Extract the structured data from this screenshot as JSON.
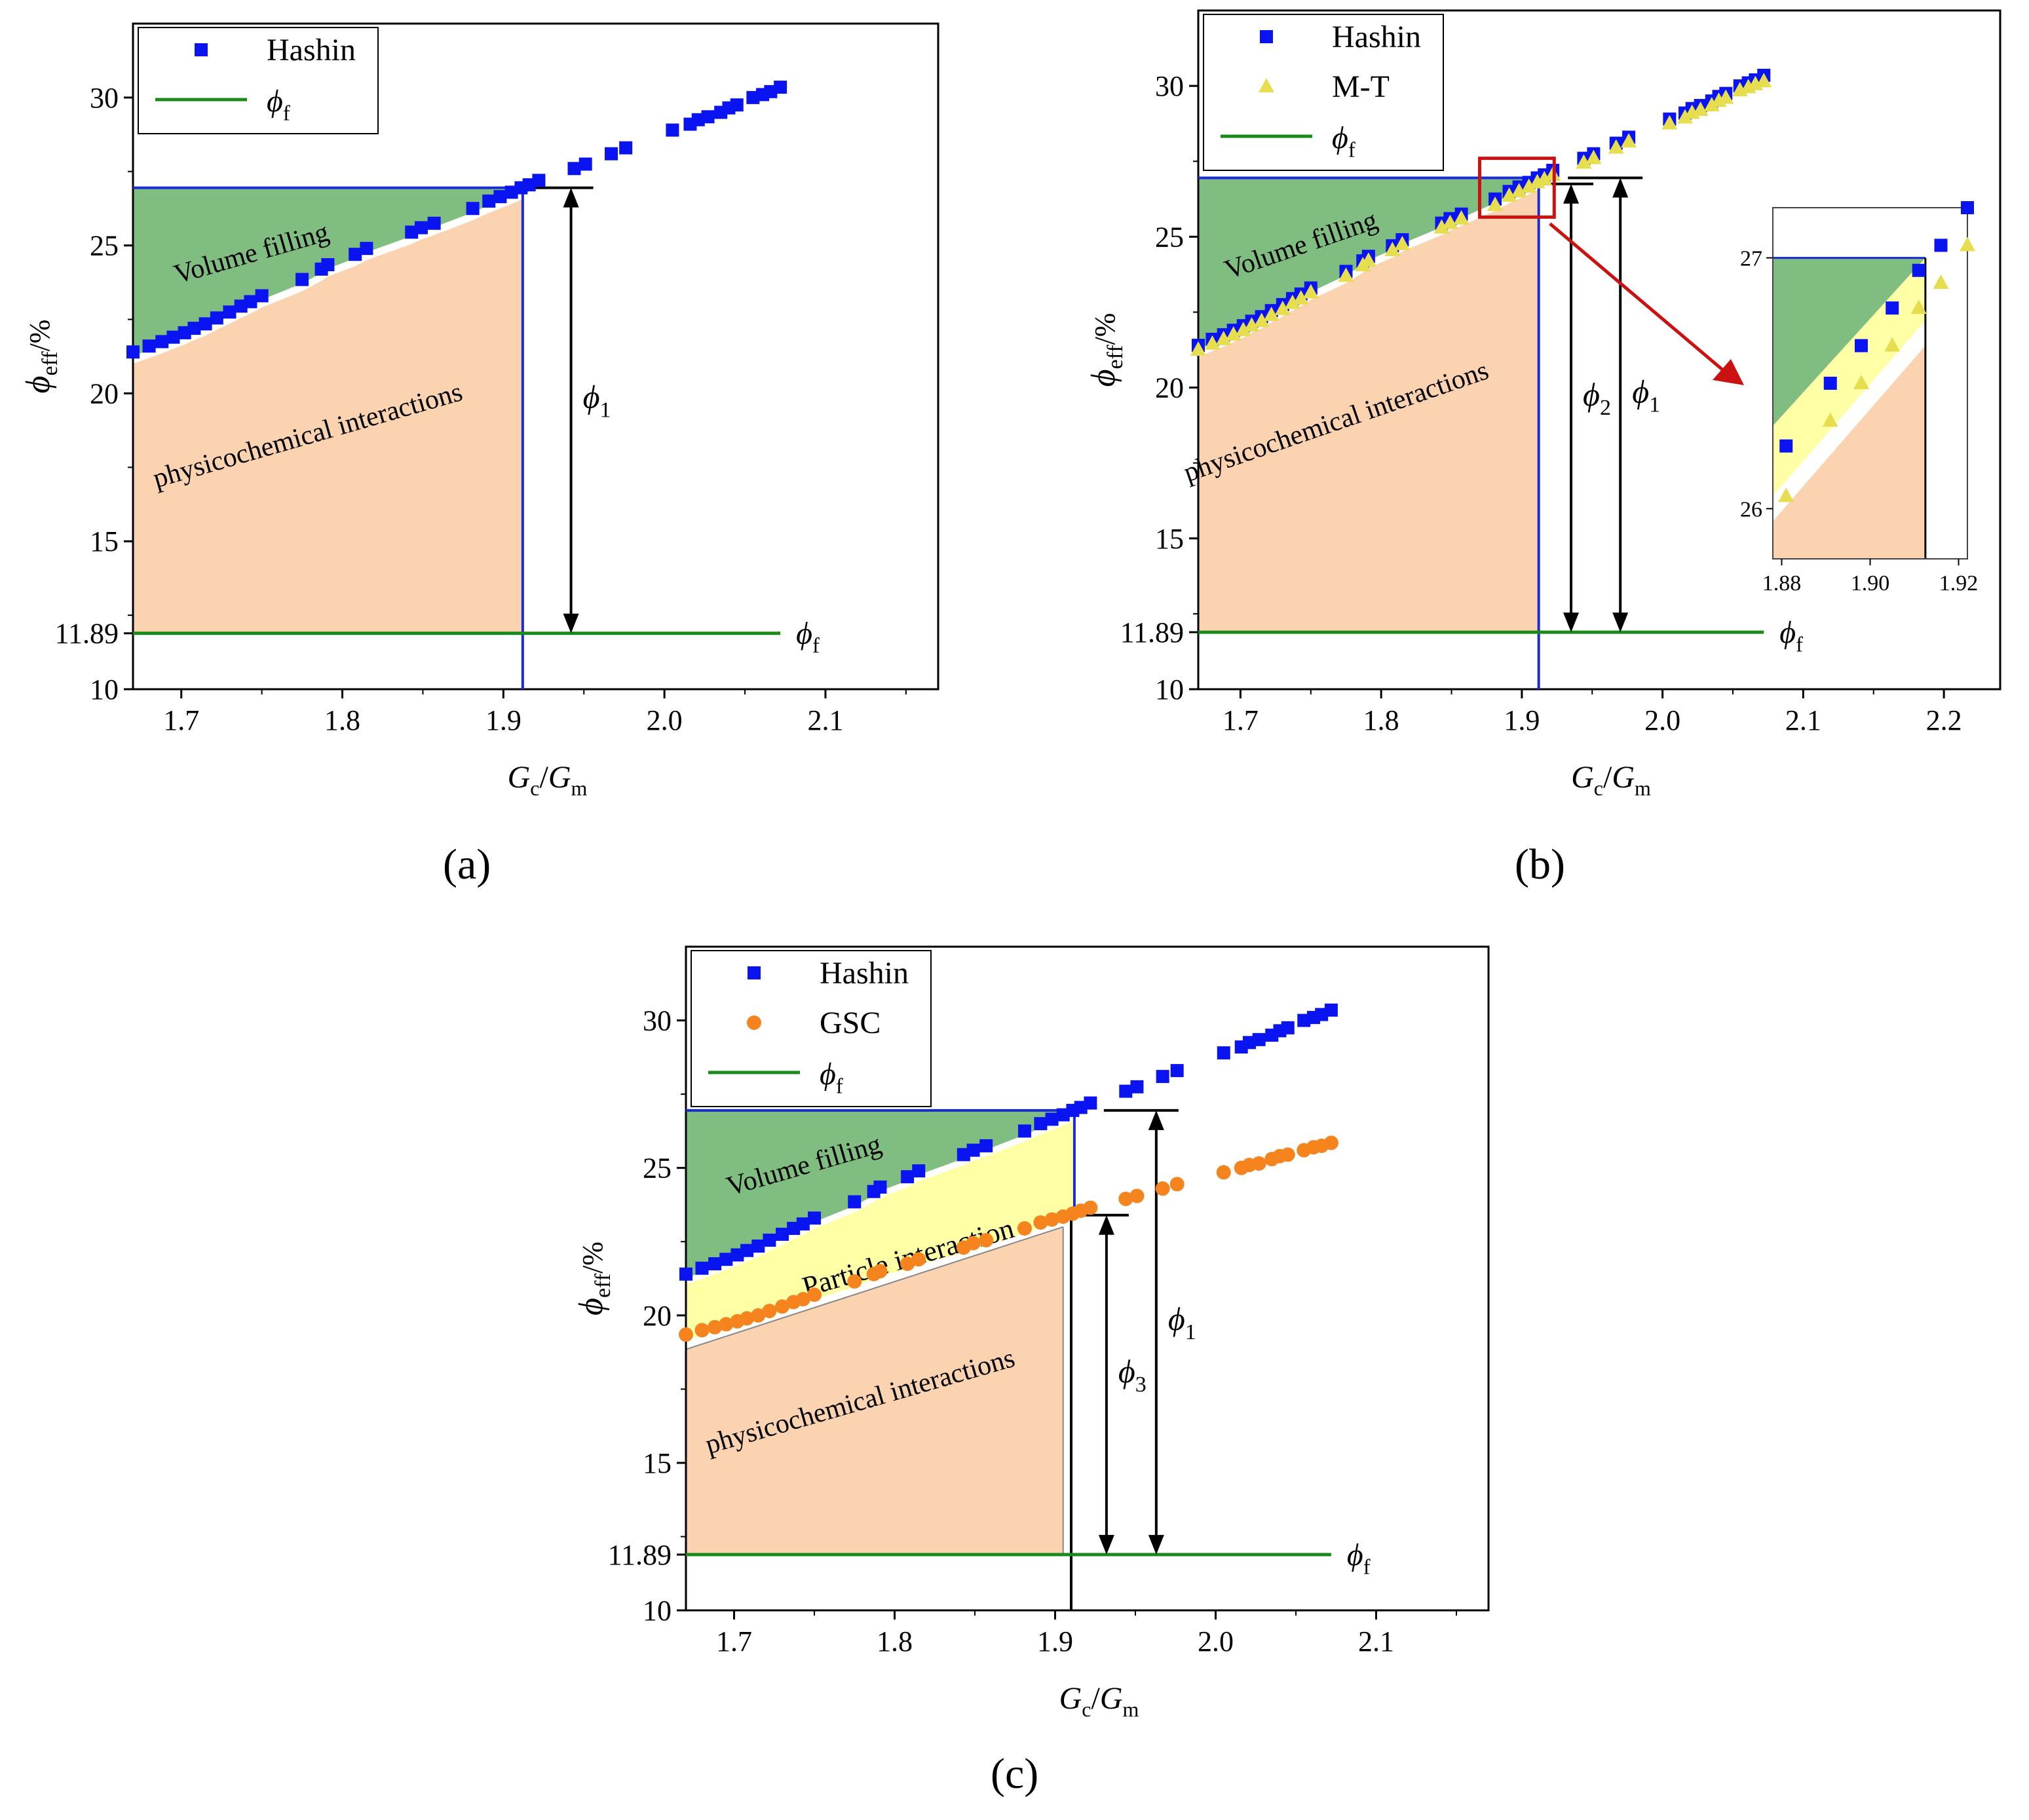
{
  "figure": {
    "panel_labels": [
      "(a)",
      "(b)",
      "(c)"
    ]
  },
  "colors": {
    "hashin": "#0a14f0",
    "mt": "#e6dd4f",
    "gsc": "#f5841f",
    "phi_f_line": "#1a8a1a",
    "volume_filling": "#7fbd80",
    "particle_interaction": "#ffffa6",
    "physicochemical": "#fbd3b0",
    "blue_line": "#1a2ad6",
    "zoom_box": "#cc1111"
  },
  "chart_data": [
    {
      "type": "scatter",
      "panel": "(a)",
      "xlabel_main": "G",
      "xlabel_sub_c": "c",
      "xlabel_sub_m": "m",
      "ylabel_main": "ϕ",
      "ylabel_sub": "eff",
      "ylabel_unit": "/%",
      "xlim": [
        1.67,
        2.17
      ],
      "ylim": [
        10,
        32.5
      ],
      "xticks": [
        "1.7",
        "1.8",
        "1.9",
        "2.0",
        "2.1"
      ],
      "yticks": [
        "10",
        "11.89",
        "15",
        "20",
        "25",
        "30"
      ],
      "ytick_values": [
        10,
        11.89,
        15,
        20,
        25,
        30
      ],
      "xtick_values": [
        1.7,
        1.8,
        1.9,
        2.0,
        2.1
      ],
      "phi_f_value": 11.89,
      "phi_f_label": "ϕ",
      "phi_f_sub": "f",
      "regions": [
        {
          "name": "Volume filling",
          "label": "Volume filling"
        },
        {
          "name": "physicochemical interactions",
          "label": "physicochemical interactions"
        }
      ],
      "arrows": [
        {
          "label": "ϕ",
          "sub": "1",
          "x": 1.942,
          "from": 11.89,
          "to": 26.95
        }
      ],
      "legend": {
        "entries": [
          "Hashin",
          "ϕ"
        ],
        "phi_sub": "f",
        "placement": "top-left"
      },
      "series": [
        {
          "name": "Hashin",
          "marker": "square",
          "x": [
            1.67,
            1.68,
            1.688,
            1.695,
            1.702,
            1.708,
            1.715,
            1.722,
            1.73,
            1.737,
            1.743,
            1.75,
            1.775,
            1.787,
            1.791,
            1.808,
            1.815,
            1.843,
            1.849,
            1.857,
            1.881,
            1.891,
            1.898,
            1.905,
            1.911,
            1.916,
            1.922,
            1.944,
            1.951,
            1.967,
            1.976,
            2.005,
            2.016,
            2.021,
            2.027,
            2.035,
            2.04,
            2.045,
            2.055,
            2.061,
            2.066,
            2.072
          ],
          "y": [
            21.4,
            21.6,
            21.75,
            21.9,
            22.05,
            22.2,
            22.35,
            22.55,
            22.75,
            22.95,
            23.1,
            23.3,
            23.85,
            24.2,
            24.35,
            24.7,
            24.9,
            25.45,
            25.6,
            25.75,
            26.25,
            26.5,
            26.65,
            26.8,
            26.95,
            27.05,
            27.2,
            27.6,
            27.75,
            28.1,
            28.3,
            28.9,
            29.1,
            29.25,
            29.35,
            29.5,
            29.65,
            29.75,
            30.0,
            30.1,
            30.2,
            30.35
          ]
        }
      ]
    },
    {
      "type": "scatter",
      "panel": "(b)",
      "xlabel_main": "G",
      "xlabel_sub_c": "c",
      "xlabel_sub_m": "m",
      "ylabel_main": "ϕ",
      "ylabel_sub": "eff",
      "ylabel_unit": "/%",
      "xlim": [
        1.67,
        2.24
      ],
      "ylim": [
        10,
        32.5
      ],
      "xticks": [
        "1.7",
        "1.8",
        "1.9",
        "2.0",
        "2.1",
        "2.2"
      ],
      "xtick_values": [
        1.7,
        1.8,
        1.9,
        2.0,
        2.1,
        2.2
      ],
      "yticks": [
        "10",
        "11.89",
        "15",
        "20",
        "25",
        "30"
      ],
      "ytick_values": [
        10,
        11.89,
        15,
        20,
        25,
        30
      ],
      "phi_f_value": 11.89,
      "phi_f_label": "ϕ",
      "phi_f_sub": "f",
      "regions": [
        {
          "name": "Volume filling",
          "label": "Volume filling"
        },
        {
          "name": "physicochemical interactions",
          "label": "physicochemical interactions"
        }
      ],
      "arrows": [
        {
          "label": "ϕ",
          "sub": "2",
          "x": 1.935,
          "from": 11.89,
          "to": 26.75
        },
        {
          "label": "ϕ",
          "sub": "1",
          "x": 1.97,
          "from": 11.89,
          "to": 26.95
        }
      ],
      "legend": {
        "entries": [
          "Hashin",
          "M-T",
          "ϕ"
        ],
        "phi_sub": "f",
        "placement": "top-left"
      },
      "inset": {
        "xlim": [
          1.878,
          1.922
        ],
        "ylim": [
          25.8,
          27.2
        ],
        "xticks": [
          "1.88",
          "1.90",
          "1.92"
        ],
        "xtick_values": [
          1.88,
          1.9,
          1.92
        ],
        "yticks": [
          "26",
          "27"
        ],
        "ytick_values": [
          26,
          27
        ]
      },
      "series": [
        {
          "name": "Hashin",
          "marker": "square",
          "x": [
            1.67,
            1.68,
            1.688,
            1.695,
            1.702,
            1.708,
            1.715,
            1.722,
            1.73,
            1.737,
            1.743,
            1.75,
            1.775,
            1.787,
            1.791,
            1.808,
            1.815,
            1.843,
            1.849,
            1.857,
            1.881,
            1.891,
            1.898,
            1.905,
            1.911,
            1.916,
            1.922,
            1.944,
            1.951,
            1.967,
            1.976,
            2.005,
            2.016,
            2.021,
            2.027,
            2.035,
            2.04,
            2.045,
            2.055,
            2.061,
            2.066,
            2.072
          ],
          "y": [
            21.4,
            21.6,
            21.75,
            21.9,
            22.05,
            22.2,
            22.35,
            22.55,
            22.75,
            22.95,
            23.1,
            23.3,
            23.85,
            24.2,
            24.35,
            24.7,
            24.9,
            25.45,
            25.6,
            25.75,
            26.25,
            26.5,
            26.65,
            26.8,
            26.95,
            27.05,
            27.2,
            27.6,
            27.75,
            28.1,
            28.3,
            28.9,
            29.1,
            29.25,
            29.35,
            29.5,
            29.65,
            29.75,
            30.0,
            30.1,
            30.2,
            30.35
          ]
        },
        {
          "name": "M-T",
          "marker": "triangle",
          "x": [
            1.67,
            1.68,
            1.688,
            1.695,
            1.702,
            1.708,
            1.715,
            1.722,
            1.73,
            1.737,
            1.743,
            1.75,
            1.775,
            1.787,
            1.791,
            1.808,
            1.815,
            1.843,
            1.849,
            1.857,
            1.881,
            1.891,
            1.898,
            1.905,
            1.911,
            1.916,
            1.922,
            1.944,
            1.951,
            1.967,
            1.976,
            2.005,
            2.016,
            2.021,
            2.027,
            2.035,
            2.04,
            2.045,
            2.055,
            2.061,
            2.066,
            2.072
          ],
          "y": [
            21.25,
            21.45,
            21.6,
            21.75,
            21.9,
            22.05,
            22.2,
            22.4,
            22.6,
            22.8,
            22.95,
            23.15,
            23.7,
            24.05,
            24.2,
            24.55,
            24.75,
            25.3,
            25.45,
            25.6,
            26.05,
            26.35,
            26.5,
            26.65,
            26.8,
            26.9,
            27.05,
            27.45,
            27.6,
            27.95,
            28.15,
            28.75,
            28.95,
            29.1,
            29.2,
            29.35,
            29.5,
            29.6,
            29.85,
            29.95,
            30.05,
            30.15
          ]
        }
      ]
    },
    {
      "type": "scatter",
      "panel": "(c)",
      "xlabel_main": "G",
      "xlabel_sub_c": "c",
      "xlabel_sub_m": "m",
      "ylabel_main": "ϕ",
      "ylabel_sub": "eff",
      "ylabel_unit": "/%",
      "xlim": [
        1.67,
        2.17
      ],
      "ylim": [
        10,
        32.5
      ],
      "xticks": [
        "1.7",
        "1.8",
        "1.9",
        "2.0",
        "2.1"
      ],
      "xtick_values": [
        1.7,
        1.8,
        1.9,
        2.0,
        2.1
      ],
      "yticks": [
        "10",
        "11.89",
        "15",
        "20",
        "25",
        "30"
      ],
      "ytick_values": [
        10,
        11.89,
        15,
        20,
        25,
        30
      ],
      "phi_f_value": 11.89,
      "phi_f_label": "ϕ",
      "phi_f_sub": "f",
      "regions": [
        {
          "name": "Volume filling",
          "label": "Volume filling"
        },
        {
          "name": "Particle interaction",
          "label": "Particle interaction"
        },
        {
          "name": "physicochemical interactions",
          "label": "physicochemical interactions"
        }
      ],
      "arrows": [
        {
          "label": "ϕ",
          "sub": "3",
          "x": 1.932,
          "from": 11.89,
          "to": 23.4
        },
        {
          "label": "ϕ",
          "sub": "1",
          "x": 1.963,
          "from": 11.89,
          "to": 26.95
        }
      ],
      "legend": {
        "entries": [
          "Hashin",
          "GSC",
          "ϕ"
        ],
        "phi_sub": "f",
        "placement": "top-left"
      },
      "series": [
        {
          "name": "Hashin",
          "marker": "square",
          "x": [
            1.67,
            1.68,
            1.688,
            1.695,
            1.702,
            1.708,
            1.715,
            1.722,
            1.73,
            1.737,
            1.743,
            1.75,
            1.775,
            1.787,
            1.791,
            1.808,
            1.815,
            1.843,
            1.849,
            1.857,
            1.881,
            1.891,
            1.898,
            1.905,
            1.911,
            1.916,
            1.922,
            1.944,
            1.951,
            1.967,
            1.976,
            2.005,
            2.016,
            2.021,
            2.027,
            2.035,
            2.04,
            2.045,
            2.055,
            2.061,
            2.066,
            2.072
          ],
          "y": [
            21.4,
            21.6,
            21.75,
            21.9,
            22.05,
            22.2,
            22.35,
            22.55,
            22.75,
            22.95,
            23.1,
            23.3,
            23.85,
            24.2,
            24.35,
            24.7,
            24.9,
            25.45,
            25.6,
            25.75,
            26.25,
            26.5,
            26.65,
            26.8,
            26.95,
            27.05,
            27.2,
            27.6,
            27.75,
            28.1,
            28.3,
            28.9,
            29.1,
            29.25,
            29.35,
            29.5,
            29.65,
            29.75,
            30.0,
            30.1,
            30.2,
            30.35
          ]
        },
        {
          "name": "GSC",
          "marker": "circle",
          "x": [
            1.67,
            1.68,
            1.688,
            1.695,
            1.702,
            1.708,
            1.715,
            1.722,
            1.73,
            1.737,
            1.743,
            1.75,
            1.775,
            1.787,
            1.791,
            1.808,
            1.815,
            1.843,
            1.849,
            1.857,
            1.881,
            1.891,
            1.898,
            1.905,
            1.911,
            1.916,
            1.922,
            1.944,
            1.951,
            1.967,
            1.976,
            2.005,
            2.016,
            2.021,
            2.027,
            2.035,
            2.04,
            2.045,
            2.055,
            2.061,
            2.066,
            2.072
          ],
          "y": [
            19.35,
            19.5,
            19.6,
            19.7,
            19.8,
            19.9,
            20.0,
            20.15,
            20.3,
            20.45,
            20.55,
            20.7,
            21.15,
            21.4,
            21.5,
            21.75,
            21.9,
            22.3,
            22.45,
            22.55,
            22.95,
            23.15,
            23.25,
            23.35,
            23.45,
            23.55,
            23.65,
            23.95,
            24.05,
            24.3,
            24.45,
            24.85,
            25.0,
            25.1,
            25.15,
            25.3,
            25.4,
            25.45,
            25.6,
            25.7,
            25.75,
            25.85
          ]
        }
      ]
    }
  ]
}
